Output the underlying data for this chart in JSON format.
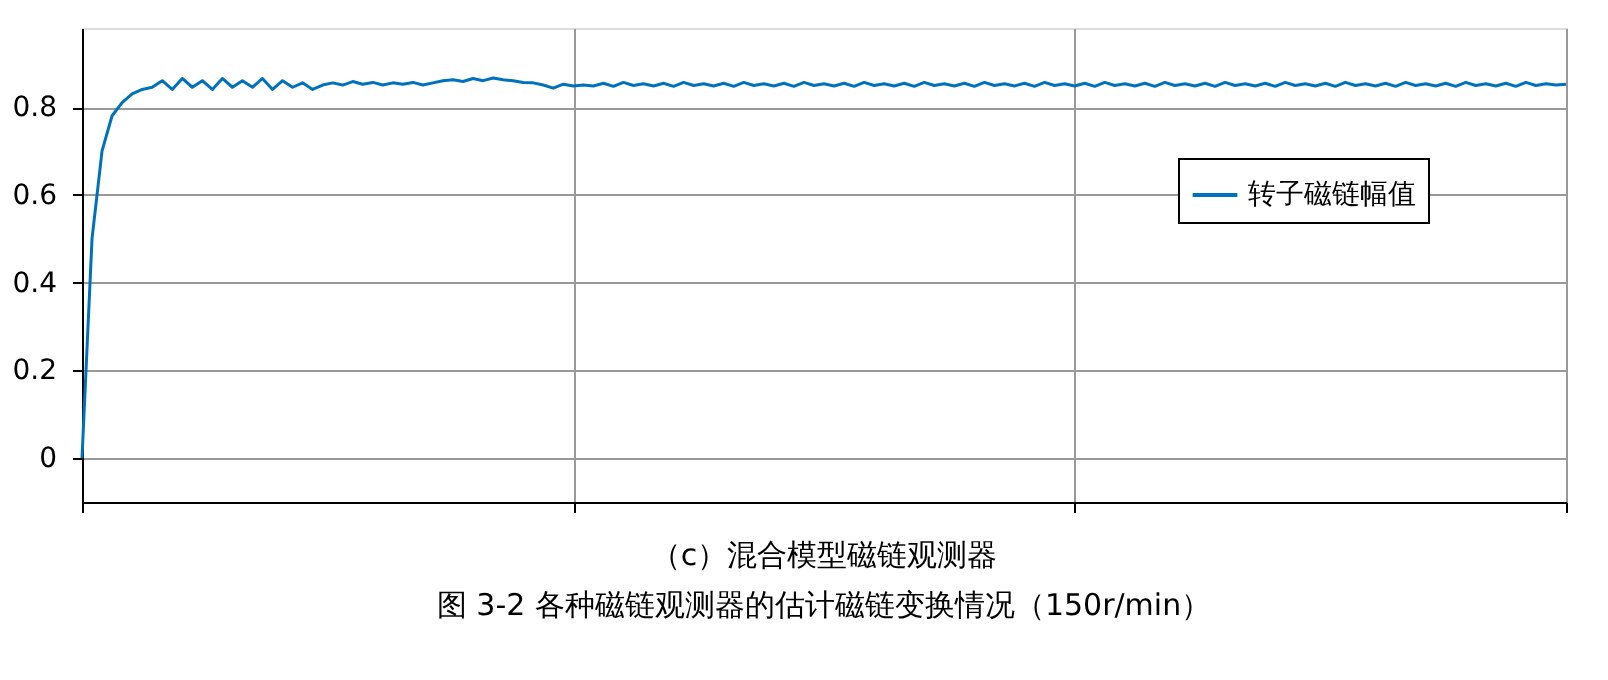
{
  "chart_data": {
    "type": "line",
    "title": "（c）混合模型磁链观测器",
    "subtitle": "图 3-2 各种磁链观测器的估计磁链变换情况（150r/min）",
    "categories": [
      null,
      null,
      null,
      null,
      null,
      null,
      null,
      null,
      null,
      null,
      null,
      null,
      null,
      null,
      null,
      null,
      null,
      null,
      null,
      null,
      null,
      null,
      null,
      null,
      null,
      null,
      null,
      null,
      null,
      null,
      null,
      null,
      null,
      null,
      null,
      null,
      null,
      null,
      null,
      null,
      null,
      null,
      null,
      null,
      null,
      null,
      null,
      null,
      null,
      null,
      null,
      null,
      null,
      null,
      null,
      null,
      null,
      null,
      null,
      null,
      null,
      null,
      null,
      null,
      null,
      null,
      null,
      null,
      null,
      null,
      null,
      null,
      null,
      null,
      null,
      null,
      null,
      null,
      null,
      null,
      null,
      null,
      null,
      null,
      null,
      null,
      null,
      null,
      null,
      null,
      null,
      null,
      null,
      null,
      null,
      null,
      null,
      null,
      null,
      null,
      null,
      null,
      null,
      null,
      null,
      null,
      null,
      null,
      null,
      null,
      null,
      null,
      null,
      null,
      null,
      null,
      null,
      null,
      null,
      null,
      null,
      null,
      null,
      null,
      null,
      null,
      null,
      null,
      null,
      null,
      null,
      null,
      null,
      null,
      null,
      null,
      null,
      null,
      null,
      null,
      null,
      null,
      null,
      null,
      null,
      null,
      null,
      null,
      null
    ],
    "ylim": [
      -0.1,
      0.98
    ],
    "yticks": [
      0,
      0.2,
      0.4,
      0.6,
      0.8
    ],
    "tick_labels": "y",
    "grid": true,
    "legend": "right",
    "line_style": "solid",
    "marker": "none",
    "series": [
      {
        "name": "转子磁链幅值",
        "color": "#0072bd",
        "values": [
          0,
          0.5,
          0.7,
          0.78,
          0.81,
          0.83,
          0.84,
          0.845,
          0.86,
          0.84,
          0.865,
          0.845,
          0.86,
          0.84,
          0.865,
          0.845,
          0.86,
          0.845,
          0.865,
          0.84,
          0.86,
          0.845,
          0.855,
          0.84,
          0.85,
          0.855,
          0.85,
          0.858,
          0.852,
          0.856,
          0.85,
          0.855,
          0.852,
          0.856,
          0.85,
          0.855,
          0.86,
          0.862,
          0.858,
          0.865,
          0.86,
          0.866,
          0.862,
          0.86,
          0.856,
          0.855,
          0.85,
          0.843,
          0.852,
          0.848,
          0.85,
          0.848,
          0.854,
          0.847,
          0.856,
          0.849,
          0.853,
          0.848,
          0.854,
          0.847,
          0.856,
          0.849,
          0.853,
          0.848,
          0.854,
          0.847,
          0.856,
          0.849,
          0.853,
          0.848,
          0.854,
          0.847,
          0.856,
          0.849,
          0.853,
          0.848,
          0.854,
          0.847,
          0.856,
          0.849,
          0.853,
          0.848,
          0.854,
          0.847,
          0.856,
          0.849,
          0.853,
          0.848,
          0.854,
          0.847,
          0.856,
          0.849,
          0.853,
          0.848,
          0.854,
          0.847,
          0.856,
          0.849,
          0.853,
          0.848,
          0.854,
          0.847,
          0.856,
          0.849,
          0.853,
          0.848,
          0.854,
          0.847,
          0.856,
          0.849,
          0.853,
          0.848,
          0.854,
          0.847,
          0.856,
          0.849,
          0.853,
          0.848,
          0.854,
          0.847,
          0.856,
          0.849,
          0.853,
          0.848,
          0.854,
          0.847,
          0.856,
          0.849,
          0.853,
          0.848,
          0.854,
          0.847,
          0.856,
          0.849,
          0.853,
          0.848,
          0.854,
          0.847,
          0.856,
          0.849,
          0.853,
          0.848,
          0.854,
          0.847,
          0.856,
          0.849,
          0.853,
          0.85,
          0.852
        ]
      }
    ]
  }
}
